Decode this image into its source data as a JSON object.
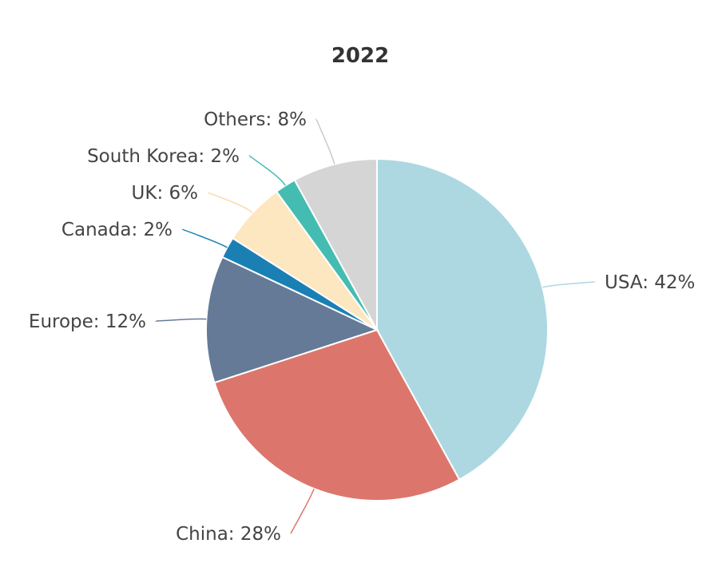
{
  "chart_data": {
    "type": "pie",
    "title": "2022",
    "slices": [
      {
        "name": "USA",
        "value": 42,
        "label": "USA: 42%",
        "color": "#add8e2"
      },
      {
        "name": "China",
        "value": 28,
        "label": "China: 28%",
        "color": "#dc766c"
      },
      {
        "name": "Europe",
        "value": 12,
        "label": "Europe: 12%",
        "color": "#657a96"
      },
      {
        "name": "Canada",
        "value": 2,
        "label": "Canada: 2%",
        "color": "#1a80b4"
      },
      {
        "name": "UK",
        "value": 6,
        "label": "UK: 6%",
        "color": "#fde7c0"
      },
      {
        "name": "South Korea",
        "value": 2,
        "label": "South Korea: 2%",
        "color": "#45bcb2"
      },
      {
        "name": "Others",
        "value": 8,
        "label": "Others: 8%",
        "color": "#d5d5d5"
      }
    ]
  }
}
